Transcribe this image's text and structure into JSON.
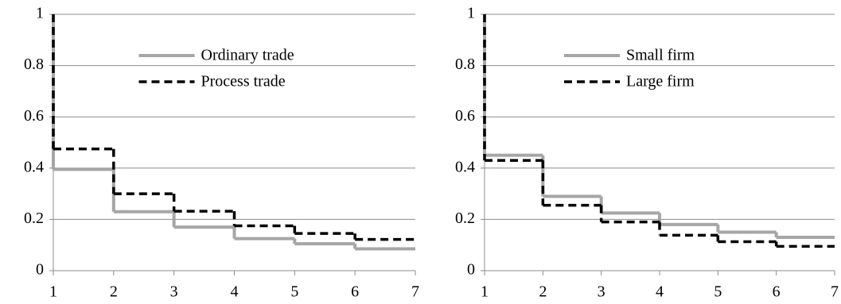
{
  "chart_data": [
    {
      "type": "step",
      "x": [
        1,
        1,
        2,
        3,
        4,
        5,
        6
      ],
      "series": [
        {
          "name": "Ordinary trade",
          "color": "#a6a6a6",
          "dash": "solid",
          "values": [
            1,
            0.395,
            0.23,
            0.17,
            0.125,
            0.105,
            0.085
          ]
        },
        {
          "name": "Process trade",
          "color": "#000000",
          "dash": "dashed",
          "values": [
            1,
            0.475,
            0.3,
            0.232,
            0.175,
            0.145,
            0.122
          ]
        }
      ],
      "xlim": [
        1,
        7
      ],
      "xticks": [
        1,
        2,
        3,
        4,
        5,
        6,
        7
      ],
      "ylim": [
        0,
        1
      ],
      "yticks": [
        0,
        0.2,
        0.4,
        0.6,
        0.8,
        1
      ],
      "grid": true,
      "legend": "upper center"
    },
    {
      "type": "step",
      "x": [
        1,
        1,
        2,
        3,
        4,
        5,
        6
      ],
      "series": [
        {
          "name": "Small firm",
          "color": "#a6a6a6",
          "dash": "solid",
          "values": [
            1,
            0.45,
            0.29,
            0.225,
            0.18,
            0.15,
            0.13
          ]
        },
        {
          "name": "Large firm",
          "color": "#000000",
          "dash": "dashed",
          "values": [
            1,
            0.43,
            0.255,
            0.19,
            0.138,
            0.113,
            0.095
          ]
        }
      ],
      "xlim": [
        1,
        7
      ],
      "xticks": [
        1,
        2,
        3,
        4,
        5,
        6,
        7
      ],
      "ylim": [
        0,
        1
      ],
      "yticks": [
        0,
        0.2,
        0.4,
        0.6,
        0.8,
        1
      ],
      "grid": true,
      "legend": "upper center"
    }
  ]
}
